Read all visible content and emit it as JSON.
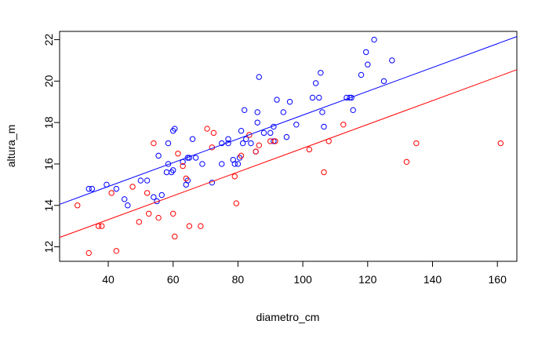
{
  "chart_data": {
    "type": "scatter",
    "xlabel": "diametro_cm",
    "ylabel": "altura_m",
    "xlim": [
      25,
      166
    ],
    "ylim": [
      11.3,
      22.4
    ],
    "xticks": [
      40,
      60,
      80,
      100,
      120,
      140,
      160
    ],
    "yticks": [
      12,
      14,
      16,
      18,
      20,
      22
    ],
    "grid": false,
    "legend": "none",
    "series": [
      {
        "color": "#0000ff",
        "marker": "open-circle",
        "points": [
          [
            34,
            14.8
          ],
          [
            35,
            14.8
          ],
          [
            39.5,
            15.0
          ],
          [
            42.5,
            14.8
          ],
          [
            45,
            14.3
          ],
          [
            46,
            14.0
          ],
          [
            50,
            15.2
          ],
          [
            52,
            15.2
          ],
          [
            54,
            14.4
          ],
          [
            55,
            14.2
          ],
          [
            55.5,
            16.4
          ],
          [
            56.5,
            14.5
          ],
          [
            58,
            15.6
          ],
          [
            58.5,
            16.0
          ],
          [
            58.5,
            17.0
          ],
          [
            59.5,
            15.6
          ],
          [
            60,
            15.7
          ],
          [
            60,
            17.6
          ],
          [
            60.5,
            17.7
          ],
          [
            63,
            16.1
          ],
          [
            64,
            15.0
          ],
          [
            64.5,
            15.2
          ],
          [
            64.5,
            16.3
          ],
          [
            65,
            16.3
          ],
          [
            66,
            17.2
          ],
          [
            67,
            16.3
          ],
          [
            69,
            16.0
          ],
          [
            72,
            15.1
          ],
          [
            75,
            16.0
          ],
          [
            75,
            17.0
          ],
          [
            77,
            17.0
          ],
          [
            77,
            17.2
          ],
          [
            78.5,
            16.2
          ],
          [
            79,
            16.0
          ],
          [
            80,
            16.0
          ],
          [
            80.5,
            16.3
          ],
          [
            81,
            17.6
          ],
          [
            81.5,
            17.0
          ],
          [
            82,
            18.6
          ],
          [
            82.5,
            17.2
          ],
          [
            84,
            17.0
          ],
          [
            85.5,
            16.6
          ],
          [
            86,
            18.0
          ],
          [
            86,
            18.5
          ],
          [
            86.5,
            20.2
          ],
          [
            88,
            17.5
          ],
          [
            90,
            17.5
          ],
          [
            91,
            17.1
          ],
          [
            91,
            17.8
          ],
          [
            92,
            19.1
          ],
          [
            94,
            18.5
          ],
          [
            95,
            17.3
          ],
          [
            96,
            19.0
          ],
          [
            98,
            17.9
          ],
          [
            103,
            19.2
          ],
          [
            104,
            19.9
          ],
          [
            105,
            19.2
          ],
          [
            105.5,
            20.4
          ],
          [
            106,
            18.5
          ],
          [
            106.5,
            17.8
          ],
          [
            113.5,
            19.2
          ],
          [
            114.5,
            19.2
          ],
          [
            115,
            19.2
          ],
          [
            115.5,
            18.6
          ],
          [
            118,
            20.3
          ],
          [
            119.5,
            21.4
          ],
          [
            120,
            20.8
          ],
          [
            122,
            22.0
          ],
          [
            125,
            20.0
          ],
          [
            127.5,
            21.0
          ]
        ]
      },
      {
        "color": "#ff0000",
        "marker": "open-circle",
        "points": [
          [
            30.5,
            14.0
          ],
          [
            34,
            11.7
          ],
          [
            37,
            13.0
          ],
          [
            38,
            13.0
          ],
          [
            41,
            14.6
          ],
          [
            42.5,
            11.8
          ],
          [
            47.5,
            14.9
          ],
          [
            49.5,
            13.2
          ],
          [
            52,
            14.6
          ],
          [
            52.5,
            13.6
          ],
          [
            54,
            17.0
          ],
          [
            55.5,
            13.4
          ],
          [
            60,
            13.6
          ],
          [
            60.5,
            12.5
          ],
          [
            61.5,
            16.5
          ],
          [
            63,
            15.9
          ],
          [
            64,
            15.3
          ],
          [
            65,
            13.0
          ],
          [
            68.5,
            13.0
          ],
          [
            70.5,
            17.7
          ],
          [
            72,
            16.8
          ],
          [
            72.5,
            17.5
          ],
          [
            79,
            15.4
          ],
          [
            79.5,
            14.1
          ],
          [
            81,
            16.4
          ],
          [
            83.5,
            17.4
          ],
          [
            85.5,
            16.6
          ],
          [
            86.5,
            16.9
          ],
          [
            90,
            17.1
          ],
          [
            91.5,
            17.1
          ],
          [
            102,
            16.7
          ],
          [
            106.5,
            15.6
          ],
          [
            108,
            17.1
          ],
          [
            112.5,
            17.9
          ],
          [
            132,
            16.1
          ],
          [
            135,
            17.0
          ],
          [
            161,
            17.0
          ]
        ]
      }
    ],
    "lines": [
      {
        "color": "#0000ff",
        "x": [
          25,
          166
        ],
        "y": [
          14.05,
          22.15
        ]
      },
      {
        "color": "#ff0000",
        "x": [
          25,
          166
        ],
        "y": [
          12.45,
          20.55
        ]
      }
    ]
  }
}
